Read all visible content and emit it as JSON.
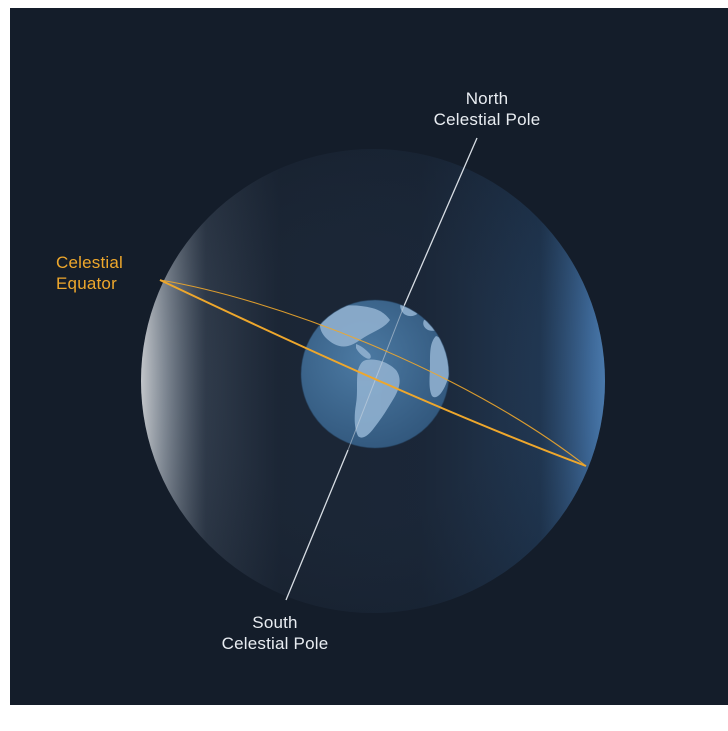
{
  "labels": {
    "north_pole": [
      "North",
      "Celestial Pole"
    ],
    "south_pole": [
      "South",
      "Celestial Pole"
    ],
    "celestial_equator": [
      "Celestial",
      "Equator"
    ]
  },
  "colors": {
    "background": "#141d2a",
    "sphere_left_highlight": "#f4f6f8",
    "sphere_right_rim": "#4f87c4",
    "equator_line": "#eea72c",
    "axis_line": "#d7dde4",
    "earth_ocean": "#3f6a92",
    "earth_land": "#8fb0cf"
  },
  "icons": [
    "celestial-sphere",
    "earth-globe"
  ]
}
